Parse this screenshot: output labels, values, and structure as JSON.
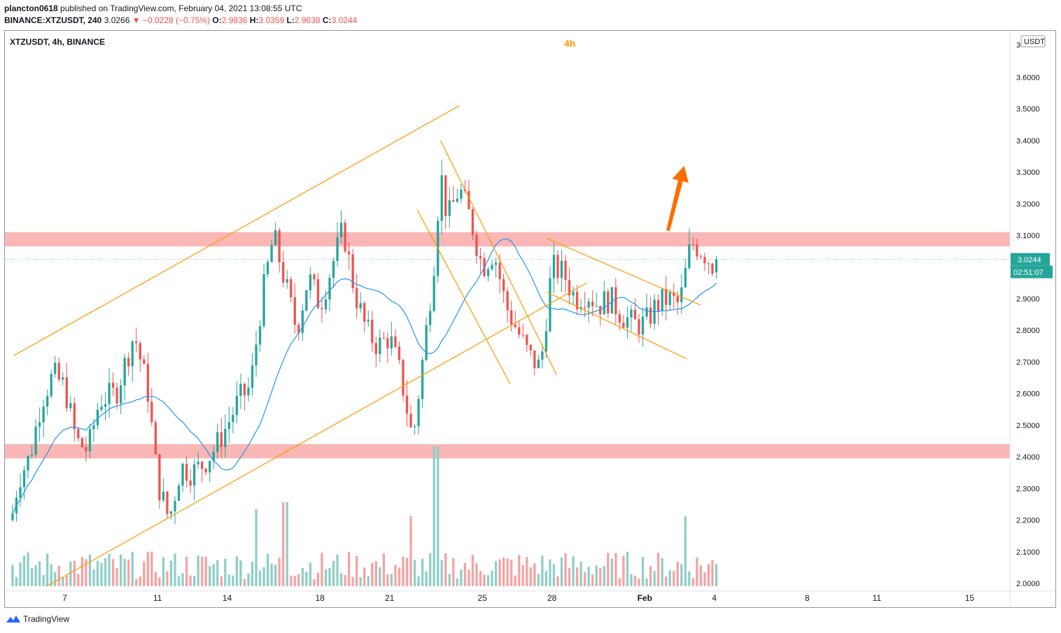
{
  "header": {
    "user": "plancton0618",
    "publish_text": "published on TradingView.com, February 04, 2021 13:08:55 UTC",
    "symbol_full": "BINANCE:XTZUSDT, 240",
    "last": "3.0266",
    "change": "−0.0228 (−0.75%)",
    "o_label": "O:",
    "o_val": "2.9836",
    "h_label": "H:",
    "h_val": "3.0359",
    "l_label": "L:",
    "l_val": "2.9638",
    "c_label": "C:",
    "c_val": "3.0244"
  },
  "chart_title": "XTZUSDT, 4h, BINANCE",
  "timeframe_label": "4h",
  "currency_badge": "USDT",
  "price_label": "3.0244",
  "countdown_label": "02:51:07",
  "footer_brand": "TradingView",
  "colors": {
    "up": "#26a69a",
    "down": "#ef5350",
    "candle_up": "#26a69a",
    "candle_down": "#ef5350",
    "ma": "#2196f3",
    "trendline": "#ff9800",
    "zone": "#f8a5a4",
    "arrow": "#ff6d00",
    "vol_up": "#8fcfc8",
    "vol_down": "#f5a3a3"
  },
  "chart_data": {
    "type": "candlestick",
    "ylim": [
      1.99,
      3.72
    ],
    "xlim": [
      4.8,
      16.4
    ],
    "y_ticks": [
      {
        "v": 3.6,
        "label": "3.6000"
      },
      {
        "v": 3.5,
        "label": "3.5000"
      },
      {
        "v": 3.4,
        "label": "3.4000"
      },
      {
        "v": 3.3,
        "label": "3.3000"
      },
      {
        "v": 3.2,
        "label": "3.2000"
      },
      {
        "v": 3.1,
        "label": "3.1000"
      },
      {
        "v": 2.9,
        "label": "2.9000"
      },
      {
        "v": 2.8,
        "label": "2.8000"
      },
      {
        "v": 2.7,
        "label": "2.7000"
      },
      {
        "v": 2.6,
        "label": "2.6000"
      },
      {
        "v": 2.5,
        "label": "2.5000"
      },
      {
        "v": 2.4,
        "label": "2.4000"
      },
      {
        "v": 2.3,
        "label": "2.3000"
      },
      {
        "v": 2.2,
        "label": "2.2000"
      },
      {
        "v": 2.1,
        "label": "2.1000"
      },
      {
        "v": 2.0,
        "label": "2.0000"
      }
    ],
    "top_partial_tick": "3",
    "x_ticks": [
      {
        "d": 7,
        "label": "7"
      },
      {
        "d": 11,
        "label": "11"
      },
      {
        "d": 14,
        "label": "14"
      },
      {
        "d": 18,
        "label": "18"
      },
      {
        "d": 21,
        "label": "21"
      },
      {
        "d": 25,
        "label": "25"
      },
      {
        "d": 28,
        "label": "28"
      },
      {
        "d": 32,
        "label": "Feb"
      },
      {
        "d": 35,
        "label": "4"
      },
      {
        "d": 39,
        "label": "8"
      },
      {
        "d": 42,
        "label": "11"
      },
      {
        "d": 46,
        "label": "15"
      }
    ],
    "x_units": "day index (January 2021 days, continuing into February as 32=Feb 1)",
    "close_anchors": [
      [
        4.7,
        2.2
      ],
      [
        5.0,
        2.33
      ],
      [
        5.5,
        2.4
      ],
      [
        6.0,
        2.58
      ],
      [
        6.5,
        2.66
      ],
      [
        7.0,
        2.62
      ],
      [
        7.5,
        2.45
      ],
      [
        8.0,
        2.42
      ],
      [
        8.5,
        2.58
      ],
      [
        9.2,
        2.6
      ],
      [
        10.0,
        2.79
      ],
      [
        10.6,
        2.6
      ],
      [
        11.0,
        2.32
      ],
      [
        11.5,
        2.2
      ],
      [
        12.0,
        2.37
      ],
      [
        12.5,
        2.35
      ],
      [
        13.0,
        2.38
      ],
      [
        13.5,
        2.43
      ],
      [
        14.0,
        2.5
      ],
      [
        14.5,
        2.58
      ],
      [
        15.0,
        2.62
      ],
      [
        15.5,
        2.9
      ],
      [
        16.0,
        3.1
      ],
      [
        16.5,
        2.95
      ],
      [
        17.0,
        2.8
      ],
      [
        17.5,
        2.97
      ],
      [
        18.0,
        2.88
      ],
      [
        18.5,
        3.0
      ],
      [
        19.0,
        3.12
      ],
      [
        19.5,
        2.92
      ],
      [
        20.0,
        2.8
      ],
      [
        20.5,
        2.75
      ],
      [
        21.0,
        2.78
      ],
      [
        21.5,
        2.65
      ],
      [
        22.0,
        2.45
      ],
      [
        22.5,
        2.75
      ],
      [
        22.9,
        3.0
      ],
      [
        23.2,
        3.3
      ],
      [
        23.5,
        3.15
      ],
      [
        24.0,
        3.25
      ],
      [
        24.5,
        3.15
      ],
      [
        25.0,
        3.0
      ],
      [
        25.5,
        3.05
      ],
      [
        26.0,
        2.88
      ],
      [
        26.5,
        2.8
      ],
      [
        27.0,
        2.72
      ],
      [
        27.5,
        2.68
      ],
      [
        28.0,
        3.0
      ],
      [
        28.5,
        2.98
      ],
      [
        29.0,
        2.9
      ],
      [
        29.5,
        2.92
      ],
      [
        30.0,
        2.88
      ],
      [
        30.5,
        2.9
      ],
      [
        31.0,
        2.85
      ],
      [
        31.5,
        2.82
      ],
      [
        32.0,
        2.82
      ],
      [
        32.5,
        2.88
      ],
      [
        33.0,
        2.9
      ],
      [
        33.5,
        2.88
      ],
      [
        34.0,
        3.08
      ],
      [
        34.5,
        3.05
      ],
      [
        35.0,
        3.0
      ],
      [
        35.2,
        3.02
      ]
    ],
    "volume_peaks": [
      {
        "d": 21.9,
        "h": "high"
      },
      {
        "d": 23.0,
        "h": "highest"
      },
      {
        "d": 33.8,
        "h": "high"
      }
    ],
    "moving_average": "blue line following price",
    "annotations": {
      "resistance_zone": [
        3.065,
        3.11
      ],
      "support_zone": [
        2.395,
        2.44
      ],
      "ascending_channel_upper": [
        [
          4.8,
          2.72
        ],
        [
          24.0,
          3.51
        ]
      ],
      "ascending_channel_lower": [
        [
          6.2,
          1.99
        ],
        [
          29.5,
          2.95
        ]
      ],
      "falling_wedge_upper": [
        [
          23.2,
          3.4
        ],
        [
          28.2,
          2.66
        ]
      ],
      "falling_wedge_lower": [
        [
          22.2,
          3.18
        ],
        [
          26.2,
          2.63
        ]
      ],
      "pennant_upper": [
        [
          27.8,
          3.09
        ],
        [
          34.4,
          2.88
        ]
      ],
      "pennant_lower": [
        [
          27.8,
          2.92
        ],
        [
          33.8,
          2.71
        ]
      ],
      "arrow": {
        "from": [
          33.0,
          3.115
        ],
        "to": [
          33.7,
          3.32
        ]
      }
    }
  }
}
